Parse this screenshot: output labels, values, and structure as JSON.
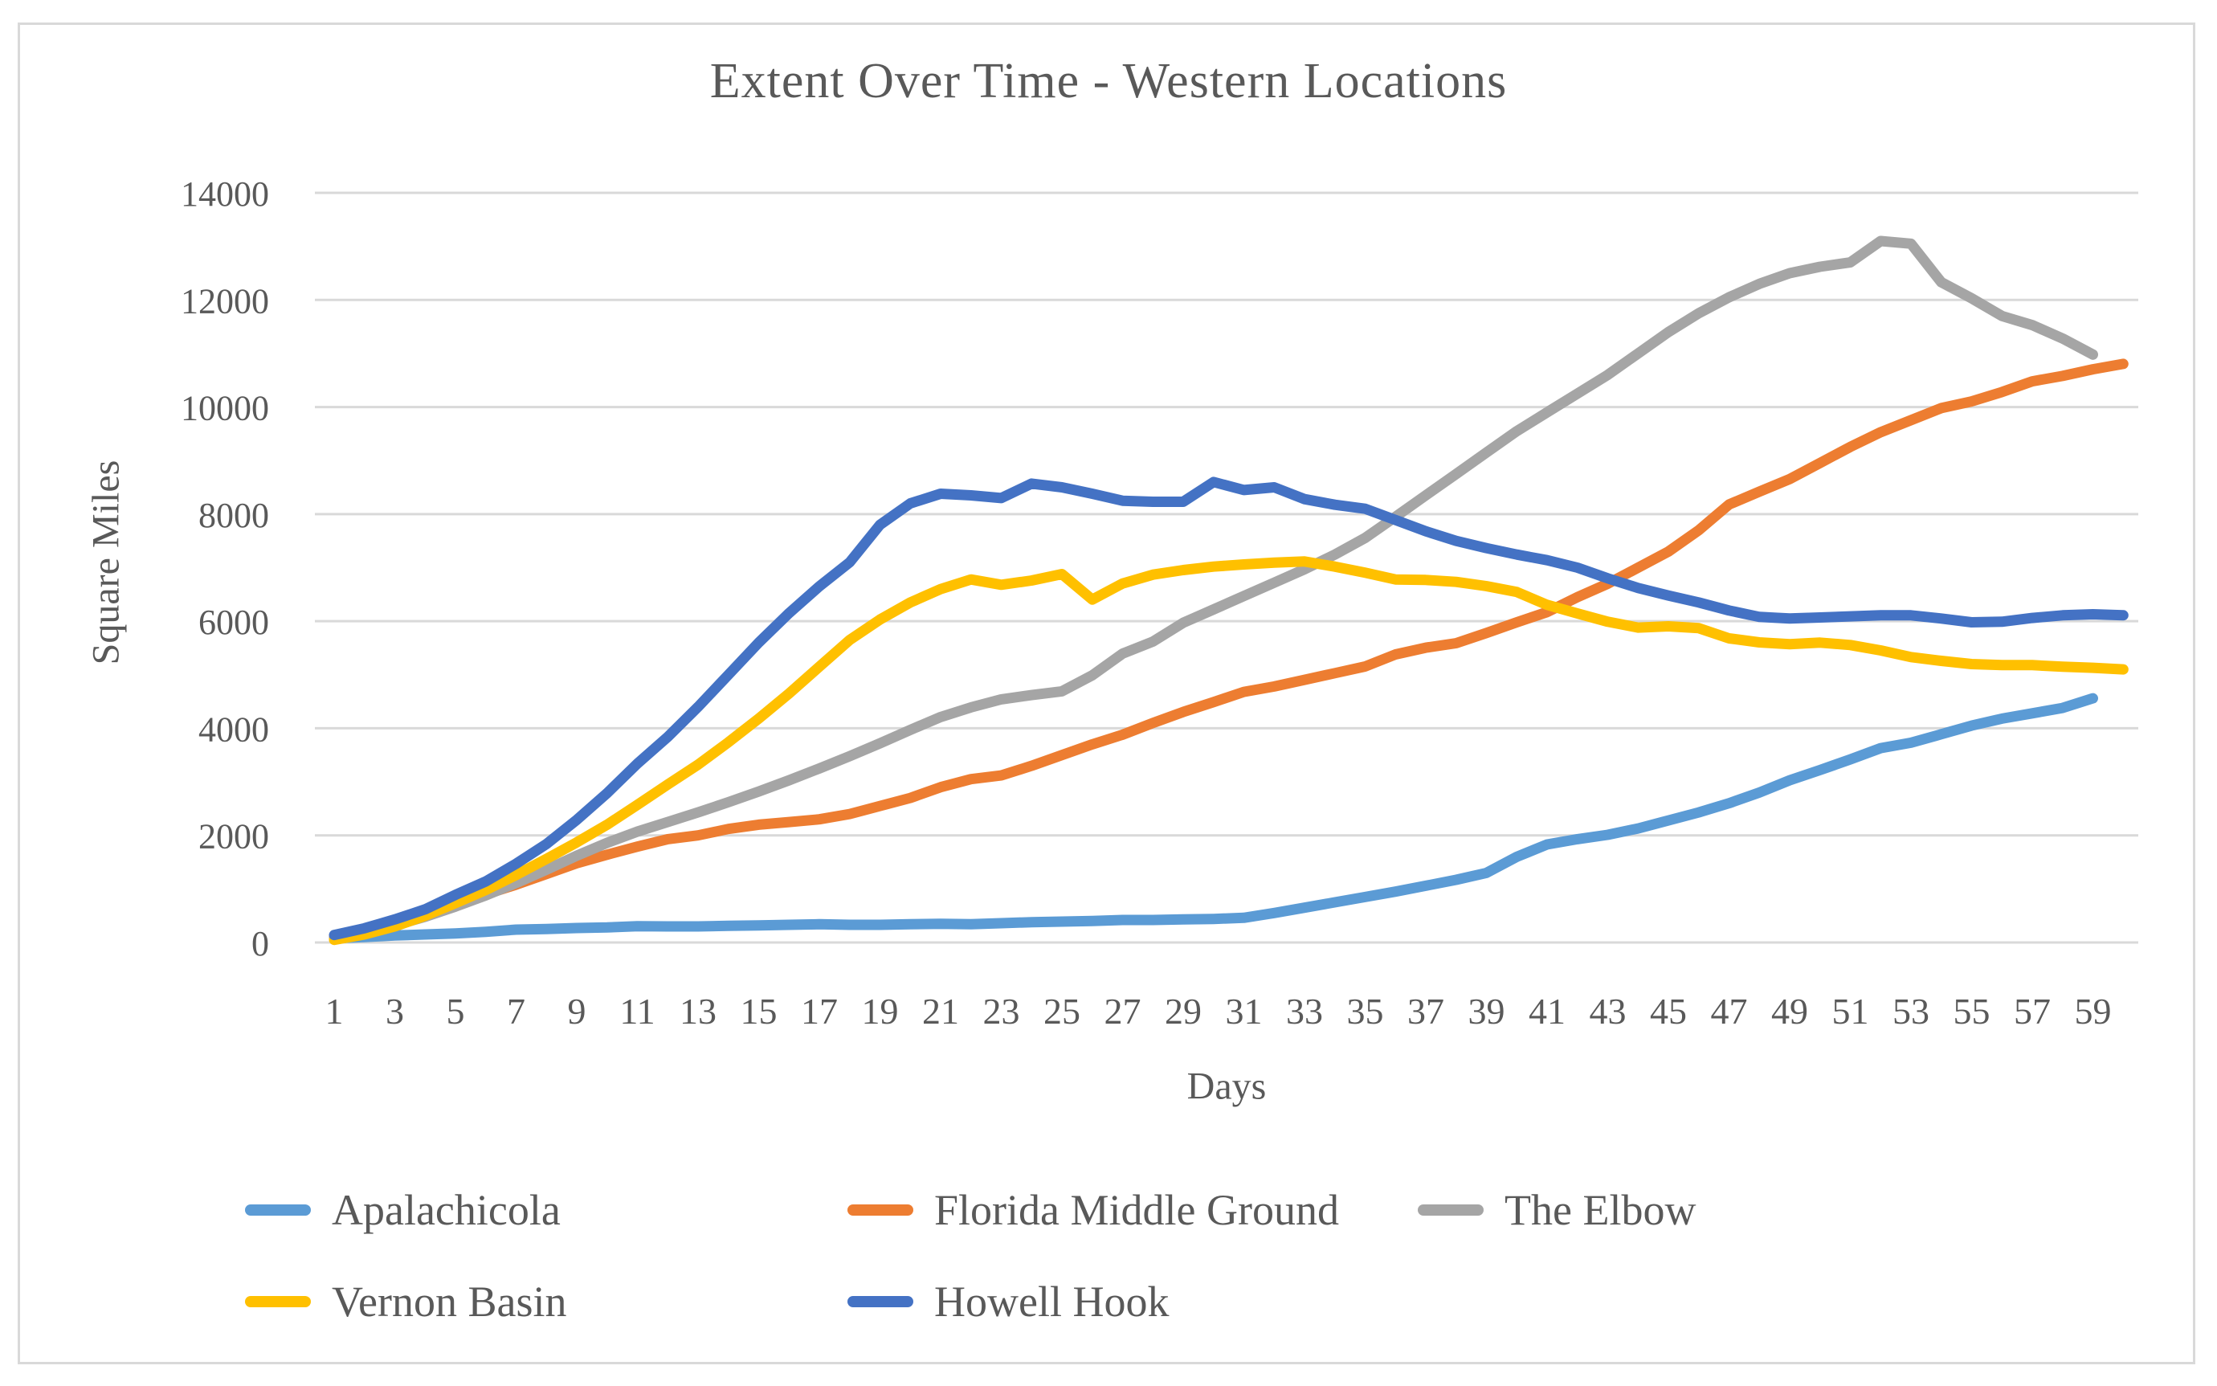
{
  "chart_data": {
    "type": "line",
    "title": "Extent Over Time - Western Locations",
    "xlabel": "Days",
    "ylabel": "Square Miles",
    "ylim": [
      0,
      14000
    ],
    "yticks": [
      0,
      2000,
      4000,
      6000,
      8000,
      10000,
      12000,
      14000
    ],
    "xticks": [
      1,
      3,
      5,
      7,
      9,
      11,
      13,
      15,
      17,
      19,
      21,
      23,
      25,
      27,
      29,
      31,
      33,
      35,
      37,
      39,
      41,
      43,
      45,
      47,
      49,
      51,
      53,
      55,
      57,
      59
    ],
    "x_days_range": [
      1,
      60
    ],
    "grid": "horizontal",
    "legend_position": "bottom",
    "palette": {
      "text": "#595959",
      "gridline": "#D9D9D9",
      "frame_border": "#D9D9D9",
      "background": "#FFFFFF"
    },
    "series": [
      {
        "name": "Apalachicola",
        "color": "#5B9BD5",
        "values": [
          80,
          100,
          130,
          150,
          170,
          200,
          240,
          250,
          270,
          280,
          305,
          300,
          300,
          310,
          320,
          330,
          340,
          330,
          330,
          340,
          350,
          340,
          360,
          380,
          390,
          400,
          420,
          420,
          430,
          440,
          460,
          550,
          650,
          750,
          850,
          950,
          1060,
          1170,
          1300,
          1600,
          1830,
          1930,
          2010,
          2130,
          2280,
          2430,
          2600,
          2800,
          3030,
          3220,
          3420,
          3630,
          3730,
          3890,
          4050,
          4180,
          4280,
          4380,
          4560,
          null
        ]
      },
      {
        "name": "Florida Middle Ground",
        "color": "#ED7D31",
        "values": [
          105,
          230,
          380,
          550,
          720,
          900,
          1080,
          1280,
          1480,
          1640,
          1790,
          1930,
          2000,
          2120,
          2200,
          2250,
          2300,
          2400,
          2550,
          2700,
          2900,
          3050,
          3120,
          3300,
          3500,
          3700,
          3880,
          4100,
          4305,
          4490,
          4680,
          4780,
          4905,
          5030,
          5155,
          5380,
          5505,
          5590,
          5780,
          5980,
          6170,
          6450,
          6700,
          7000,
          7300,
          7700,
          8180,
          8420,
          8655,
          8955,
          9255,
          9530,
          9755,
          9980,
          10105,
          10280,
          10480,
          10580,
          10705,
          10805
        ]
      },
      {
        "name": "The Elbow",
        "color": "#A5A5A5",
        "values": [
          80,
          190,
          320,
          480,
          670,
          880,
          1110,
          1360,
          1620,
          1860,
          2070,
          2250,
          2430,
          2620,
          2820,
          3030,
          3250,
          3480,
          3720,
          3970,
          4210,
          4390,
          4540,
          4620,
          4690,
          4990,
          5395,
          5620,
          5970,
          6220,
          6470,
          6720,
          6970,
          7245,
          7555,
          7950,
          8350,
          8750,
          9150,
          9550,
          9900,
          10250,
          10600,
          11000,
          11400,
          11750,
          12050,
          12300,
          12500,
          12620,
          12700,
          13100,
          13050,
          12330,
          12030,
          11700,
          11530,
          11280,
          10980,
          null
        ]
      },
      {
        "name": "Vernon Basin",
        "color": "#FFC000",
        "values": [
          50,
          150,
          300,
          500,
          735,
          980,
          1260,
          1560,
          1870,
          2200,
          2570,
          2950,
          3320,
          3740,
          4180,
          4650,
          5150,
          5650,
          6030,
          6350,
          6600,
          6780,
          6680,
          6760,
          6880,
          6405,
          6705,
          6870,
          6955,
          7020,
          7060,
          7095,
          7115,
          7020,
          6905,
          6780,
          6770,
          6735,
          6655,
          6545,
          6305,
          6145,
          5990,
          5880,
          5905,
          5870,
          5680,
          5605,
          5570,
          5600,
          5555,
          5455,
          5330,
          5260,
          5200,
          5180,
          5180,
          5150,
          5130,
          5100
        ]
      },
      {
        "name": "Howell Hook",
        "color": "#4472C4",
        "values": [
          140,
          265,
          430,
          620,
          890,
          1140,
          1470,
          1840,
          2290,
          2790,
          3340,
          3840,
          4400,
          5000,
          5600,
          6150,
          6650,
          7100,
          7800,
          8200,
          8380,
          8350,
          8300,
          8570,
          8500,
          8380,
          8250,
          8230,
          8230,
          8600,
          8450,
          8500,
          8280,
          8175,
          8100,
          7890,
          7680,
          7500,
          7365,
          7245,
          7140,
          7000,
          6800,
          6620,
          6480,
          6350,
          6200,
          6080,
          6050,
          6070,
          6090,
          6110,
          6110,
          6050,
          5980,
          5990,
          6060,
          6110,
          6130,
          6110
        ]
      }
    ]
  }
}
